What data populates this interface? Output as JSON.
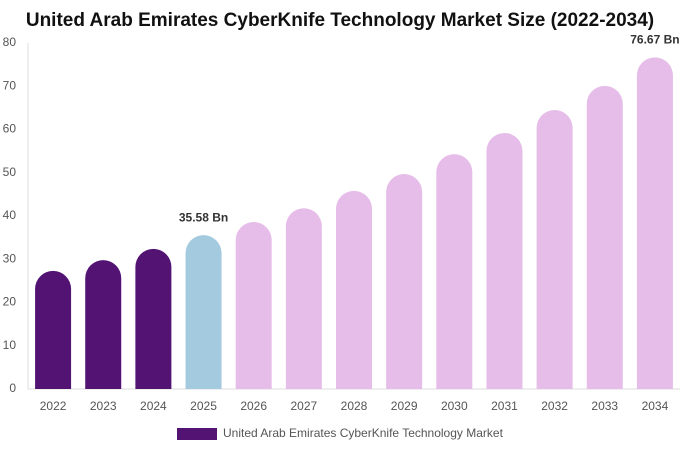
{
  "chart_data": {
    "type": "bar",
    "title": "United Arab Emirates CyberKnife Technology Market Size (2022-2034)",
    "categories": [
      "2022",
      "2023",
      "2024",
      "2025",
      "2026",
      "2027",
      "2028",
      "2029",
      "2030",
      "2031",
      "2032",
      "2033",
      "2034"
    ],
    "series": [
      {
        "name": "United Arab Emirates CyberKnife Technology Market",
        "color": "#521373",
        "values": [
          27.3,
          29.8,
          32.4,
          35.58,
          38.6,
          41.8,
          45.8,
          49.7,
          54.3,
          59.2,
          64.5,
          70.1,
          76.67
        ],
        "value_labels": [
          null,
          null,
          null,
          "35.58 Bn",
          null,
          null,
          null,
          null,
          null,
          null,
          null,
          null,
          "76.67 Bn"
        ],
        "colors": [
          "#521373",
          "#521373",
          "#521373",
          "#a3cadf",
          "#e6bde9",
          "#e6bde9",
          "#e6bde9",
          "#e6bde9",
          "#e6bde9",
          "#e6bde9",
          "#e6bde9",
          "#e6bde9",
          "#e6bde9"
        ]
      }
    ],
    "ylim": [
      0,
      80
    ],
    "yticks": [
      0,
      10,
      20,
      30,
      40,
      50,
      60,
      70,
      80
    ],
    "grid": false
  }
}
